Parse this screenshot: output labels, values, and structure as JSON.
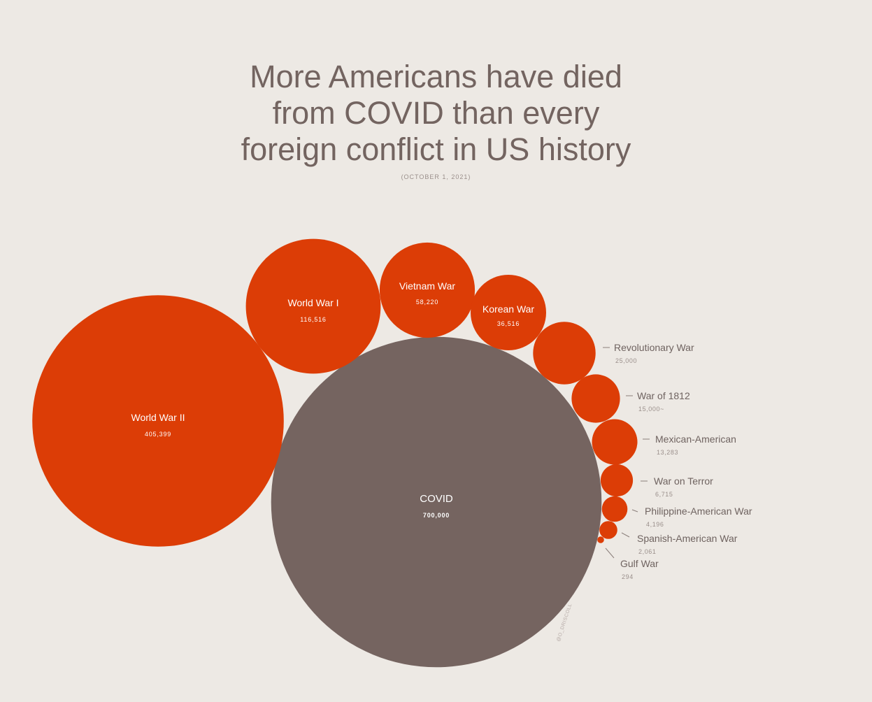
{
  "title_lines": [
    "More Americans have died",
    "from COVID than every",
    "foreign conflict in US history"
  ],
  "subtitle": "(OCTOBER 1, 2021)",
  "credit": "@O_DRISCOLL",
  "colors": {
    "background": "#ede9e4",
    "war": "#dc3d06",
    "covid": "#756460",
    "text": "#736460",
    "subtext": "#9a8f8b"
  },
  "chart_data": {
    "type": "bubble",
    "title": "More Americans have died from COVID than every foreign conflict in US history",
    "subtitle": "(OCTOBER 1, 2021)",
    "series": [
      {
        "name": "COVID",
        "value": 700000,
        "display": "700,000",
        "highlight": true
      },
      {
        "name": "World War II",
        "value": 405399,
        "display": "405,399"
      },
      {
        "name": "World War I",
        "value": 116516,
        "display": "116,516"
      },
      {
        "name": "Vietnam War",
        "value": 58220,
        "display": "58,220"
      },
      {
        "name": "Korean War",
        "value": 36516,
        "display": "36,516"
      },
      {
        "name": "Revolutionary War",
        "value": 25000,
        "display": "25,000"
      },
      {
        "name": "War of 1812",
        "value": 15000,
        "display": "15,000~"
      },
      {
        "name": "Mexican-American",
        "value": 13283,
        "display": "13,283"
      },
      {
        "name": "War on Terror",
        "value": 6715,
        "display": "6,715"
      },
      {
        "name": "Philippine-American  War",
        "value": 4196,
        "display": "4,196"
      },
      {
        "name": "Spanish-American War",
        "value": 2061,
        "display": "2,061"
      },
      {
        "name": "Gulf War",
        "value": 294,
        "display": "294"
      }
    ]
  }
}
